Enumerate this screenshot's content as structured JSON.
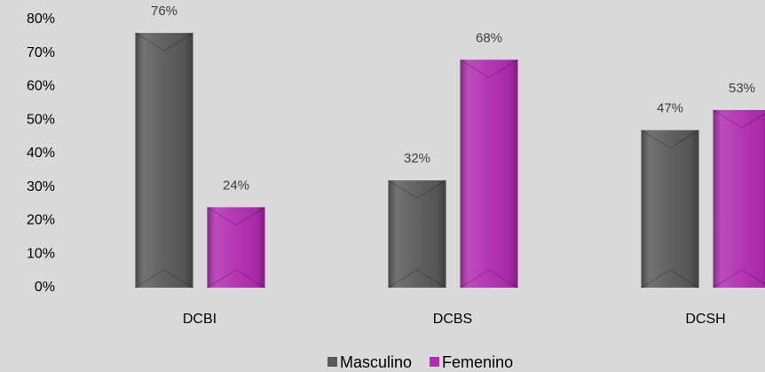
{
  "chart_data": {
    "type": "bar",
    "categories": [
      "DCBI",
      "DCBS",
      "DCSH"
    ],
    "series": [
      {
        "name": "Masculino",
        "color": "#595959",
        "values": [
          76,
          32,
          47
        ],
        "value_labels": [
          "76%",
          "32%",
          "47%"
        ]
      },
      {
        "name": "Femenino",
        "color": "#b02cb0",
        "values": [
          24,
          68,
          53
        ],
        "value_labels": [
          "24%",
          "68%",
          "53%"
        ]
      }
    ],
    "ylim": [
      0,
      80
    ],
    "yticks": [
      {
        "value": 0,
        "label": "0%"
      },
      {
        "value": 10,
        "label": "10%"
      },
      {
        "value": 20,
        "label": "20%"
      },
      {
        "value": 30,
        "label": "30%"
      },
      {
        "value": 40,
        "label": "40%"
      },
      {
        "value": 50,
        "label": "50%"
      },
      {
        "value": 60,
        "label": "60%"
      },
      {
        "value": 70,
        "label": "70%"
      },
      {
        "value": 80,
        "label": "80%"
      }
    ],
    "legend": "bottom"
  }
}
